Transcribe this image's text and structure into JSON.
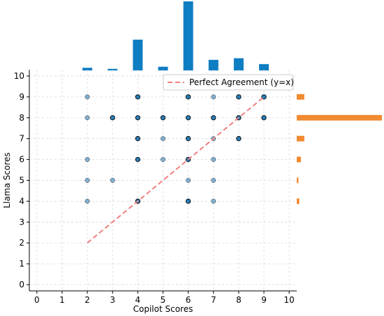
{
  "chart_data": {
    "type": "scatter",
    "xlabel": "Copilot Scores",
    "ylabel": "Llama Scores",
    "xlim": [
      -0.3,
      10.3
    ],
    "ylim": [
      -0.3,
      10.3
    ],
    "xticks": [
      "0",
      "1",
      "2",
      "3",
      "4",
      "5",
      "6",
      "7",
      "8",
      "9",
      "10"
    ],
    "yticks": [
      "0",
      "1",
      "2",
      "3",
      "4",
      "5",
      "6",
      "7",
      "8",
      "9",
      "10"
    ],
    "grid": true,
    "legend_position": "top-right",
    "reference_line": {
      "label": "Perfect Agreement (y=x)",
      "from": [
        2,
        2
      ],
      "to": [
        9,
        9
      ],
      "color": "#f08080"
    },
    "points": [
      {
        "x": 2,
        "y": 9,
        "dense": false
      },
      {
        "x": 2,
        "y": 8,
        "dense": false
      },
      {
        "x": 2,
        "y": 6,
        "dense": false
      },
      {
        "x": 2,
        "y": 5,
        "dense": false
      },
      {
        "x": 2,
        "y": 4,
        "dense": false
      },
      {
        "x": 3,
        "y": 8,
        "dense": true
      },
      {
        "x": 3,
        "y": 5,
        "dense": false
      },
      {
        "x": 4,
        "y": 9,
        "dense": true
      },
      {
        "x": 4,
        "y": 8,
        "dense": true
      },
      {
        "x": 4,
        "y": 7,
        "dense": true
      },
      {
        "x": 4,
        "y": 6,
        "dense": true
      },
      {
        "x": 4,
        "y": 4,
        "dense": true
      },
      {
        "x": 5,
        "y": 8,
        "dense": true
      },
      {
        "x": 5,
        "y": 7,
        "dense": false
      },
      {
        "x": 5,
        "y": 6,
        "dense": false
      },
      {
        "x": 6,
        "y": 9,
        "dense": true
      },
      {
        "x": 6,
        "y": 8,
        "dense": true
      },
      {
        "x": 6,
        "y": 7,
        "dense": true
      },
      {
        "x": 6,
        "y": 6,
        "dense": true
      },
      {
        "x": 6,
        "y": 5,
        "dense": false
      },
      {
        "x": 6,
        "y": 4,
        "dense": true
      },
      {
        "x": 7,
        "y": 9,
        "dense": false
      },
      {
        "x": 7,
        "y": 8,
        "dense": true
      },
      {
        "x": 7,
        "y": 7,
        "dense": false
      },
      {
        "x": 7,
        "y": 6,
        "dense": false
      },
      {
        "x": 7,
        "y": 5,
        "dense": false
      },
      {
        "x": 7,
        "y": 4,
        "dense": false
      },
      {
        "x": 8,
        "y": 9,
        "dense": true
      },
      {
        "x": 8,
        "y": 8,
        "dense": true
      },
      {
        "x": 8,
        "y": 7,
        "dense": true
      },
      {
        "x": 9,
        "y": 9,
        "dense": true
      },
      {
        "x": 9,
        "y": 8,
        "dense": true
      }
    ],
    "top_histogram": {
      "color": "#0f7dc2",
      "bins": [
        {
          "x": 2,
          "count": 5
        },
        {
          "x": 3,
          "count": 3
        },
        {
          "x": 4,
          "count": 58
        },
        {
          "x": 5,
          "count": 7
        },
        {
          "x": 6,
          "count": 130
        },
        {
          "x": 7,
          "count": 20
        },
        {
          "x": 8,
          "count": 23
        },
        {
          "x": 9,
          "count": 12
        }
      ]
    },
    "right_histogram": {
      "color": "#f28a30",
      "bins": [
        {
          "y": 9,
          "count": 9
        },
        {
          "y": 8,
          "count": 101
        },
        {
          "y": 7,
          "count": 9
        },
        {
          "y": 6,
          "count": 5
        },
        {
          "y": 5,
          "count": 2
        },
        {
          "y": 4,
          "count": 3
        }
      ]
    },
    "colors": {
      "point_fill": "#1f77b4",
      "point_edge": "#000000",
      "grid": "#d9d9d9"
    }
  }
}
